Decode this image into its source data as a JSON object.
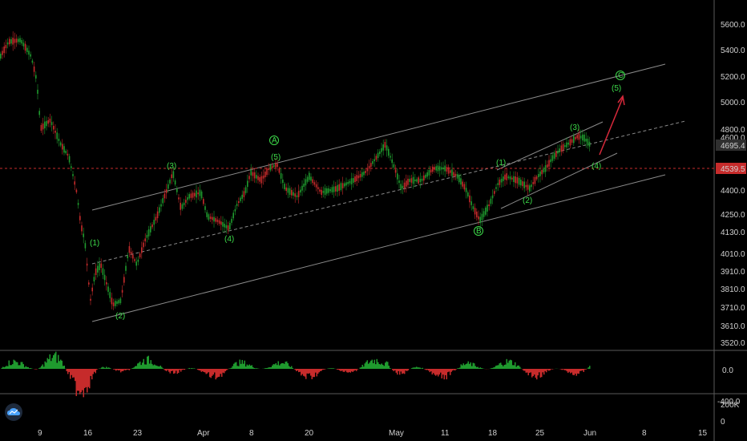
{
  "chart_data": {
    "type": "candlestick",
    "price_axis": {
      "ticks": [
        "5600.0",
        "5400.0",
        "5200.0",
        "5000.0",
        "4800.0",
        "4600.0",
        "4400.0",
        "4250.0",
        "4130.0",
        "4010.0",
        "3910.0",
        "3810.0",
        "3710.0",
        "3610.0",
        "3520.0"
      ],
      "last_price": "4695.4",
      "level_price": "4539.5"
    },
    "x_axis": {
      "ticks": [
        "9",
        "16",
        "23",
        "Apr",
        "8",
        "20",
        "May",
        "11",
        "18",
        "25",
        "Jun",
        "8",
        "15"
      ]
    },
    "oscillator_axis": {
      "ticks": [
        "0.0",
        "-400.0"
      ]
    },
    "volume_axis": {
      "ticks": [
        "200K",
        "0"
      ]
    },
    "wave_labels": [
      "(1)",
      "(2)",
      "(3)",
      "(4)",
      "(5)",
      "A",
      "B",
      "C",
      "(1)",
      "(2)",
      "(3)",
      "(4)",
      "(5)"
    ],
    "colors": {
      "up": "#1f9a2e",
      "down": "#c62b2b",
      "wave_label": "#3ddc4a",
      "last_price_bg": "#2f2f2f",
      "level_bg": "#c62b2b",
      "arrow": "#d6283a",
      "channel": "#8a8a8a"
    }
  }
}
